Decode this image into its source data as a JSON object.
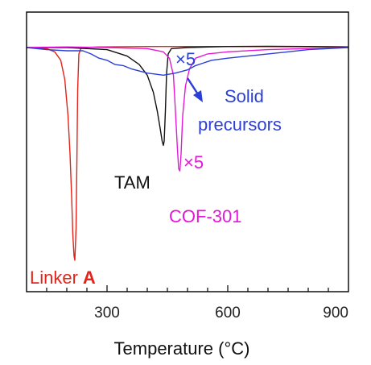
{
  "chart_data": {
    "type": "line",
    "xlabel": "Temperature (°C)",
    "ylabel": "",
    "xlim": [
      100,
      900
    ],
    "ylim": [
      -105,
      5
    ],
    "xticks": [
      300,
      600,
      900
    ],
    "xtick_labels": [
      "300",
      "600",
      "900"
    ],
    "yticks": [],
    "grid": false,
    "series": [
      {
        "name": "Linker A",
        "color": "#e2231a",
        "x": [
          100,
          150,
          170,
          185,
          195,
          203,
          208,
          212,
          215,
          218,
          220,
          223,
          225,
          227,
          230,
          235,
          245,
          280,
          400,
          600,
          800,
          900
        ],
        "y": [
          0,
          -0.5,
          -2,
          -6,
          -15,
          -32,
          -50,
          -70,
          -88,
          -98,
          -100,
          -85,
          -55,
          -20,
          -3,
          -0.5,
          0,
          0.3,
          0.5,
          0.5,
          0.4,
          0.3
        ]
      },
      {
        "name": "TAM",
        "color": "#111111",
        "x": [
          100,
          200,
          300,
          350,
          380,
          400,
          415,
          425,
          432,
          437,
          440,
          442,
          445,
          448,
          452,
          460,
          500,
          600,
          700,
          800,
          900
        ],
        "y": [
          0,
          0,
          -1,
          -4,
          -8,
          -13,
          -21,
          -30,
          -38,
          -44,
          -46,
          -44,
          -30,
          -12,
          -3,
          -0.5,
          0,
          0.5,
          0.6,
          0.5,
          0.3
        ]
      },
      {
        "name": "COF-301",
        "color": "#e418d8",
        "x": [
          100,
          200,
          300,
          400,
          440,
          455,
          465,
          470,
          475,
          478,
          481,
          484,
          488,
          495,
          505,
          520,
          550,
          600,
          700,
          800,
          900
        ],
        "y": [
          0,
          0.3,
          0,
          -0.5,
          -2,
          -5,
          -13,
          -30,
          -48,
          -57,
          -58,
          -50,
          -32,
          -18,
          -10,
          -5,
          -3,
          -2,
          -1,
          -0.5,
          0
        ]
      },
      {
        "name": "Solid precursors",
        "color": "#2b3fd6",
        "x": [
          100,
          150,
          200,
          240,
          260,
          280,
          300,
          320,
          340,
          360,
          400,
          440,
          470,
          500,
          520,
          560,
          600,
          650,
          700,
          750,
          800,
          850,
          900
        ],
        "y": [
          0,
          -1,
          -1.5,
          -1.5,
          -3,
          -5,
          -6,
          -8,
          -8.5,
          -10,
          -12,
          -13,
          -12,
          -10.5,
          -8.5,
          -6,
          -5,
          -4,
          -3,
          -2,
          -1,
          -0.5,
          0
        ]
      }
    ],
    "annotations": [
      {
        "text": "Linker",
        "suffix": "A",
        "series": "Linker A",
        "color": "#e2231a"
      },
      {
        "text": "TAM",
        "series": "TAM",
        "color": "#111111"
      },
      {
        "text": "COF-301",
        "series": "COF-301",
        "color": "#e418d8"
      },
      {
        "text": "×5",
        "series": "COF-301",
        "color": "#e418d8"
      },
      {
        "text": "Solid",
        "series": "Solid precursors",
        "color": "#2b3fd6"
      },
      {
        "text": "precursors",
        "series": "Solid precursors",
        "color": "#2b3fd6"
      },
      {
        "text": "×5",
        "series": "Solid precursors",
        "color": "#2b3fd6"
      }
    ]
  }
}
